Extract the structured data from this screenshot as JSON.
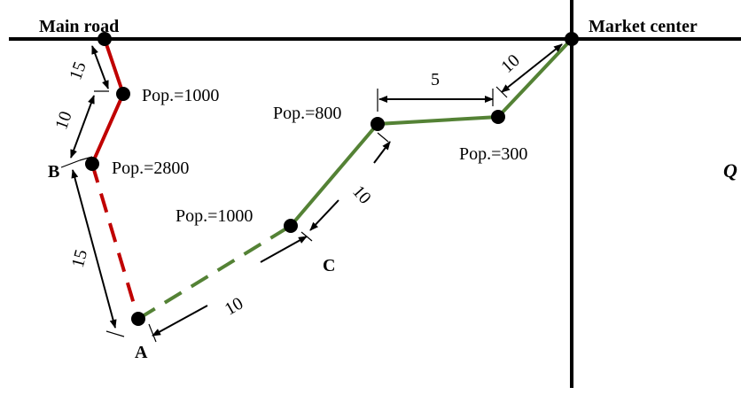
{
  "labels": {
    "main_road": "Main road",
    "market_center": "Market center",
    "node_a": "A",
    "node_b": "B",
    "node_c": "C",
    "side_letter": "Q"
  },
  "populations": {
    "red_upper": "Pop.=1000",
    "red_b": "Pop.=2800",
    "green_1000": "Pop.=1000",
    "green_800": "Pop.=800",
    "green_300": "Pop.=300"
  },
  "distances": {
    "red_top": "15",
    "red_mid": "10",
    "red_dashed": "15",
    "green_dashed": "10",
    "green_c_800": "10",
    "green_800_300": "5",
    "green_300_market": "10"
  },
  "colors": {
    "red_path": "#c00000",
    "green_path": "#548235",
    "roads": "#000000"
  }
}
